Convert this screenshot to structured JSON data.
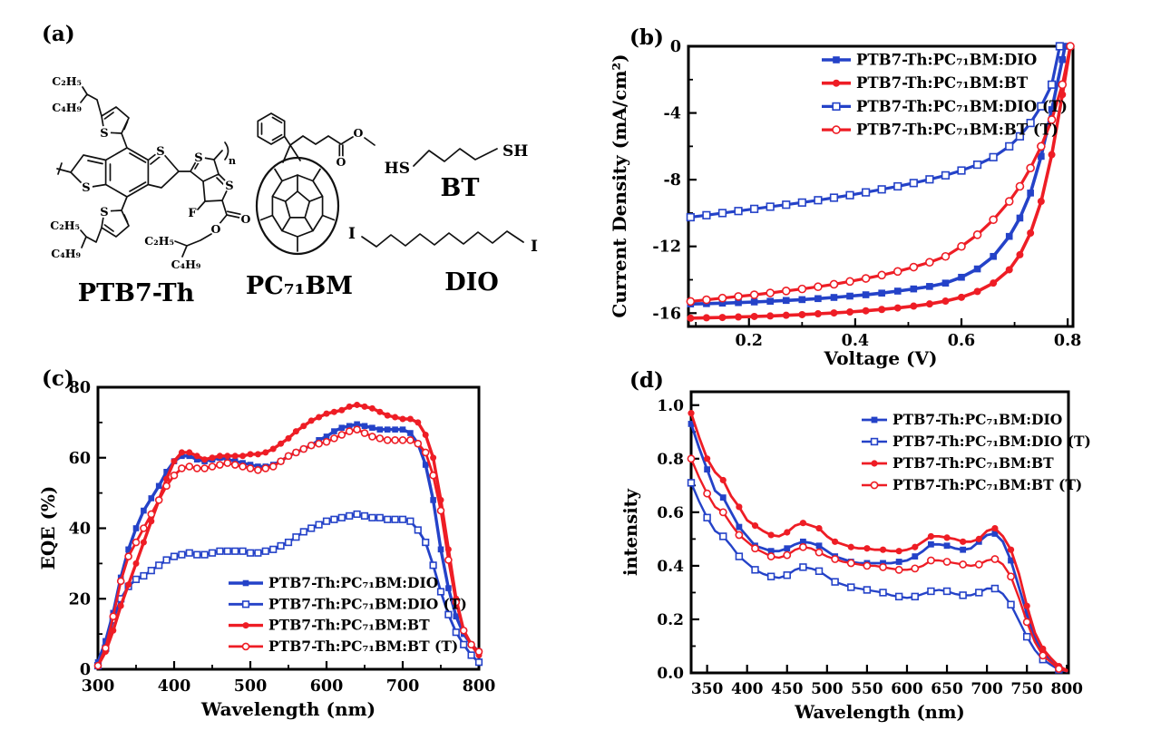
{
  "figure": {
    "panels": {
      "a": {
        "label": "(a)"
      },
      "b": {
        "label": "(b)"
      },
      "c": {
        "label": "(c)"
      },
      "d": {
        "label": "(d)"
      }
    }
  },
  "colors": {
    "blue": "#2442c8",
    "red": "#ee1d25",
    "axis": "#000000"
  },
  "molecules": {
    "ptb7th": {
      "name": "PTB7-Th",
      "c2h5": "C₂H₅",
      "c4h9": "C₄H₉",
      "s": "S",
      "f": "F",
      "o": "O",
      "n": "n"
    },
    "pc71bm": {
      "name": "PC₇₁BM",
      "o": "O"
    },
    "bt": {
      "name": "BT",
      "hs": "HS",
      "sh": "SH"
    },
    "dio": {
      "name": "DIO",
      "i": "I"
    }
  },
  "chart_data": [
    {
      "panel": "b",
      "type": "line",
      "xlabel": "Voltage (V)",
      "ylabel": "Current Density (mA/cm²)",
      "xlim": [
        0.086,
        0.81
      ],
      "ylim": [
        -16.8,
        0
      ],
      "x_major_ticks": [
        0.2,
        0.4,
        0.6,
        0.8
      ],
      "x_tick_labels": [
        "0.2",
        "0.4",
        "0.6",
        "0.8"
      ],
      "x_minor_ticks": [
        0.1,
        0.3,
        0.5,
        0.7
      ],
      "y_major_ticks": [
        0,
        -4,
        -8,
        -12,
        -16
      ],
      "y_tick_labels": [
        "0",
        "-4",
        "-8",
        "-12",
        "-16"
      ],
      "y_minor_ticks": [
        -2,
        -6,
        -10,
        -14
      ],
      "grid": false,
      "legend_position": "top-right-inside",
      "series": [
        {
          "name": "PTB7-Th:PC₇₁BM:DIO",
          "color": "blue",
          "marker": "square",
          "fill": "filled",
          "x": [
            0.09,
            0.12,
            0.15,
            0.18,
            0.21,
            0.24,
            0.27,
            0.3,
            0.33,
            0.36,
            0.39,
            0.42,
            0.45,
            0.48,
            0.51,
            0.54,
            0.57,
            0.6,
            0.63,
            0.66,
            0.69,
            0.71,
            0.73,
            0.75,
            0.77,
            0.79,
            0.795
          ],
          "values": [
            -15.45,
            -15.43,
            -15.4,
            -15.37,
            -15.33,
            -15.29,
            -15.24,
            -15.19,
            -15.13,
            -15.06,
            -14.98,
            -14.9,
            -14.8,
            -14.68,
            -14.55,
            -14.4,
            -14.2,
            -13.85,
            -13.35,
            -12.6,
            -11.4,
            -10.3,
            -8.8,
            -6.6,
            -3.8,
            -0.8,
            0
          ]
        },
        {
          "name": "PTB7-Th:PC₇₁BM:BT",
          "color": "red",
          "marker": "circle",
          "fill": "filled",
          "x": [
            0.09,
            0.12,
            0.15,
            0.18,
            0.21,
            0.24,
            0.27,
            0.3,
            0.33,
            0.36,
            0.39,
            0.42,
            0.45,
            0.48,
            0.51,
            0.54,
            0.57,
            0.6,
            0.63,
            0.66,
            0.69,
            0.71,
            0.73,
            0.75,
            0.77,
            0.79,
            0.805
          ],
          "values": [
            -16.3,
            -16.28,
            -16.26,
            -16.23,
            -16.2,
            -16.17,
            -16.13,
            -16.09,
            -16.04,
            -15.99,
            -15.93,
            -15.86,
            -15.78,
            -15.69,
            -15.58,
            -15.45,
            -15.28,
            -15.05,
            -14.7,
            -14.2,
            -13.4,
            -12.5,
            -11.2,
            -9.3,
            -6.5,
            -2.9,
            0
          ]
        },
        {
          "name": "PTB7-Th:PC₇₁BM:DIO (T)",
          "color": "blue",
          "marker": "square",
          "fill": "open",
          "x": [
            0.09,
            0.12,
            0.15,
            0.18,
            0.21,
            0.24,
            0.27,
            0.3,
            0.33,
            0.36,
            0.39,
            0.42,
            0.45,
            0.48,
            0.51,
            0.54,
            0.57,
            0.6,
            0.63,
            0.66,
            0.69,
            0.71,
            0.73,
            0.75,
            0.77,
            0.785
          ],
          "values": [
            -10.25,
            -10.13,
            -10.0,
            -9.88,
            -9.75,
            -9.62,
            -9.5,
            -9.37,
            -9.23,
            -9.08,
            -8.93,
            -8.76,
            -8.58,
            -8.4,
            -8.2,
            -7.98,
            -7.74,
            -7.45,
            -7.1,
            -6.65,
            -6.0,
            -5.4,
            -4.6,
            -3.6,
            -2.3,
            0
          ]
        },
        {
          "name": "PTB7-Th:PC₇₁BM:BT  (T)",
          "color": "red",
          "marker": "circle",
          "fill": "open",
          "x": [
            0.09,
            0.12,
            0.15,
            0.18,
            0.21,
            0.24,
            0.27,
            0.3,
            0.33,
            0.36,
            0.39,
            0.42,
            0.45,
            0.48,
            0.51,
            0.54,
            0.57,
            0.6,
            0.63,
            0.66,
            0.69,
            0.71,
            0.73,
            0.75,
            0.77,
            0.79,
            0.805
          ],
          "values": [
            -15.3,
            -15.2,
            -15.1,
            -15.0,
            -14.9,
            -14.79,
            -14.67,
            -14.55,
            -14.42,
            -14.27,
            -14.1,
            -13.92,
            -13.72,
            -13.5,
            -13.24,
            -12.95,
            -12.6,
            -12.0,
            -11.3,
            -10.4,
            -9.3,
            -8.4,
            -7.3,
            -6.0,
            -4.4,
            -2.3,
            0
          ]
        }
      ]
    },
    {
      "panel": "c",
      "type": "line",
      "xlabel": "Wavelength (nm)",
      "ylabel": "EQE (%)",
      "xlim": [
        300,
        800
      ],
      "ylim": [
        0,
        80
      ],
      "x_major_ticks": [
        300,
        400,
        500,
        600,
        700,
        800
      ],
      "x_tick_labels": [
        "300",
        "400",
        "500",
        "600",
        "700",
        "800"
      ],
      "x_minor_ticks": [
        350,
        450,
        550,
        650,
        750
      ],
      "y_major_ticks": [
        0,
        20,
        40,
        60,
        80
      ],
      "y_tick_labels": [
        "0",
        "20",
        "40",
        "60",
        "80"
      ],
      "y_minor_ticks": [
        10,
        30,
        50,
        70
      ],
      "grid": false,
      "legend_position": "bottom-center-inside",
      "x": [
        300,
        310,
        320,
        330,
        340,
        350,
        360,
        370,
        380,
        390,
        400,
        410,
        420,
        430,
        440,
        450,
        460,
        470,
        480,
        490,
        500,
        510,
        520,
        530,
        540,
        550,
        560,
        570,
        580,
        590,
        600,
        610,
        620,
        630,
        640,
        650,
        660,
        670,
        680,
        690,
        700,
        710,
        720,
        730,
        740,
        750,
        760,
        770,
        780,
        790,
        800
      ],
      "series": [
        {
          "name": "PTB7-Th:PC₇₁BM:DIO",
          "color": "blue",
          "marker": "square",
          "fill": "filled",
          "values": [
            2,
            8,
            16,
            26,
            34,
            40,
            45,
            48.5,
            52,
            56,
            59,
            60.5,
            60.5,
            59.5,
            59,
            59.5,
            60,
            59.5,
            59,
            58.5,
            58,
            57.5,
            57.5,
            58,
            59,
            60.5,
            61.5,
            62.5,
            63.5,
            65,
            66,
            67.5,
            68.5,
            69,
            69.5,
            69,
            68.5,
            68,
            68,
            68,
            68,
            67,
            64,
            58,
            48,
            34,
            23,
            15,
            10,
            7,
            5
          ]
        },
        {
          "name": "PTB7-Th:PC₇₁BM:DIO (T)",
          "color": "blue",
          "marker": "square",
          "fill": "open",
          "values": [
            1,
            6,
            14,
            20,
            23.5,
            25.5,
            26.5,
            28,
            29.5,
            31,
            32,
            32.5,
            33,
            32.5,
            32.5,
            33,
            33.5,
            33.5,
            33.5,
            33.5,
            33,
            33,
            33.5,
            34,
            35,
            36,
            37.5,
            39,
            40,
            41,
            42,
            42.5,
            43,
            43.5,
            44,
            43.5,
            43,
            43,
            42.5,
            42.5,
            42.5,
            42,
            39.5,
            36,
            29.5,
            22,
            15.5,
            10.5,
            7,
            4,
            2
          ]
        },
        {
          "name": "PTB7-Th:PC₇₁BM:BT",
          "color": "red",
          "marker": "circle",
          "fill": "filled",
          "values": [
            1,
            5,
            11,
            18,
            24,
            30,
            36,
            42,
            48,
            54,
            59,
            61.5,
            61.5,
            60.5,
            59.5,
            60,
            60.5,
            60.5,
            60.5,
            60.5,
            61,
            61,
            61.5,
            62.5,
            64,
            65.5,
            67.5,
            69,
            70.5,
            71.5,
            72.5,
            73,
            73.5,
            74.5,
            75,
            74.5,
            74,
            73,
            72,
            71.5,
            71,
            71,
            70,
            66.5,
            60,
            48,
            34,
            20,
            11,
            7,
            4
          ]
        },
        {
          "name": "PTB7-Th:PC₇₁BM:BT (T)",
          "color": "red",
          "marker": "circle",
          "fill": "open",
          "values": [
            1,
            6,
            15,
            25,
            32,
            36,
            40,
            44,
            48,
            52,
            55,
            57,
            57.5,
            57,
            57,
            57.5,
            58,
            58.5,
            58,
            57.5,
            57,
            56.5,
            57,
            57.5,
            59,
            60.5,
            61.5,
            62.5,
            63.5,
            64,
            64.5,
            65.5,
            66.5,
            67.5,
            68,
            67,
            66,
            65.5,
            65,
            65,
            65,
            65,
            64,
            61.5,
            55,
            45,
            31,
            19,
            11,
            7,
            5
          ]
        }
      ]
    },
    {
      "panel": "d",
      "type": "line",
      "xlabel": "Wavelength (nm)",
      "ylabel": "intensity",
      "xlim": [
        330,
        802
      ],
      "ylim": [
        0,
        1.05
      ],
      "x_major_ticks": [
        350,
        400,
        450,
        500,
        550,
        600,
        650,
        700,
        750,
        800
      ],
      "x_tick_labels": [
        "350",
        "400",
        "450",
        "500",
        "550",
        "600",
        "650",
        "700",
        "750",
        "800"
      ],
      "x_minor_ticks": [],
      "y_major_ticks": [
        0,
        0.2,
        0.4,
        0.6,
        0.8,
        1.0
      ],
      "y_tick_labels": [
        "0.0",
        "0.2",
        "0.4",
        "0.6",
        "0.8",
        "1.0"
      ],
      "y_minor_ticks": [
        0.1,
        0.3,
        0.5,
        0.7,
        0.9
      ],
      "grid": false,
      "legend_position": "top-right-inside",
      "x": [
        330,
        340,
        350,
        360,
        370,
        380,
        390,
        400,
        410,
        420,
        430,
        440,
        450,
        460,
        470,
        480,
        490,
        500,
        510,
        520,
        530,
        540,
        550,
        560,
        570,
        580,
        590,
        600,
        610,
        620,
        630,
        640,
        650,
        660,
        670,
        680,
        690,
        700,
        710,
        720,
        730,
        740,
        750,
        760,
        770,
        780,
        790,
        800
      ],
      "series": [
        {
          "name": "PTB7-Th:PC₇₁BM:DIO",
          "color": "blue",
          "marker": "square",
          "fill": "filled",
          "values": [
            0.93,
            0.84,
            0.76,
            0.68,
            0.655,
            0.6,
            0.545,
            0.51,
            0.475,
            0.465,
            0.455,
            0.455,
            0.465,
            0.48,
            0.49,
            0.485,
            0.475,
            0.455,
            0.435,
            0.425,
            0.415,
            0.41,
            0.41,
            0.41,
            0.41,
            0.41,
            0.415,
            0.42,
            0.435,
            0.455,
            0.48,
            0.48,
            0.475,
            0.465,
            0.46,
            0.465,
            0.49,
            0.515,
            0.52,
            0.49,
            0.42,
            0.32,
            0.22,
            0.13,
            0.075,
            0.045,
            0.02,
            0.008
          ]
        },
        {
          "name": "PTB7-Th:PC₇₁BM:DIO (T)",
          "color": "blue",
          "marker": "square",
          "fill": "open",
          "values": [
            0.71,
            0.64,
            0.58,
            0.53,
            0.51,
            0.475,
            0.435,
            0.41,
            0.385,
            0.37,
            0.36,
            0.355,
            0.365,
            0.385,
            0.395,
            0.39,
            0.38,
            0.36,
            0.34,
            0.33,
            0.32,
            0.315,
            0.31,
            0.305,
            0.3,
            0.29,
            0.285,
            0.28,
            0.285,
            0.295,
            0.305,
            0.31,
            0.305,
            0.295,
            0.29,
            0.29,
            0.3,
            0.315,
            0.315,
            0.295,
            0.255,
            0.195,
            0.135,
            0.085,
            0.05,
            0.03,
            0.012,
            0.005
          ]
        },
        {
          "name": "PTB7-Th:PC₇₁BM:BT",
          "color": "red",
          "marker": "circle",
          "fill": "filled",
          "values": [
            0.97,
            0.88,
            0.8,
            0.75,
            0.72,
            0.66,
            0.62,
            0.57,
            0.55,
            0.53,
            0.515,
            0.51,
            0.525,
            0.55,
            0.56,
            0.55,
            0.54,
            0.51,
            0.49,
            0.48,
            0.47,
            0.465,
            0.465,
            0.46,
            0.46,
            0.455,
            0.455,
            0.46,
            0.47,
            0.49,
            0.51,
            0.51,
            0.505,
            0.5,
            0.49,
            0.49,
            0.5,
            0.53,
            0.54,
            0.51,
            0.46,
            0.37,
            0.25,
            0.15,
            0.09,
            0.055,
            0.025,
            0.01
          ]
        },
        {
          "name": "PTB7-Th:PC₇₁BM:BT (T)",
          "color": "red",
          "marker": "circle",
          "fill": "open",
          "values": [
            0.8,
            0.73,
            0.67,
            0.62,
            0.6,
            0.555,
            0.515,
            0.49,
            0.465,
            0.45,
            0.435,
            0.43,
            0.44,
            0.46,
            0.47,
            0.465,
            0.45,
            0.435,
            0.425,
            0.415,
            0.41,
            0.405,
            0.4,
            0.4,
            0.395,
            0.39,
            0.385,
            0.385,
            0.39,
            0.4,
            0.42,
            0.42,
            0.415,
            0.41,
            0.405,
            0.4,
            0.405,
            0.42,
            0.425,
            0.405,
            0.36,
            0.28,
            0.19,
            0.115,
            0.065,
            0.04,
            0.015,
            0.006
          ]
        }
      ]
    }
  ]
}
